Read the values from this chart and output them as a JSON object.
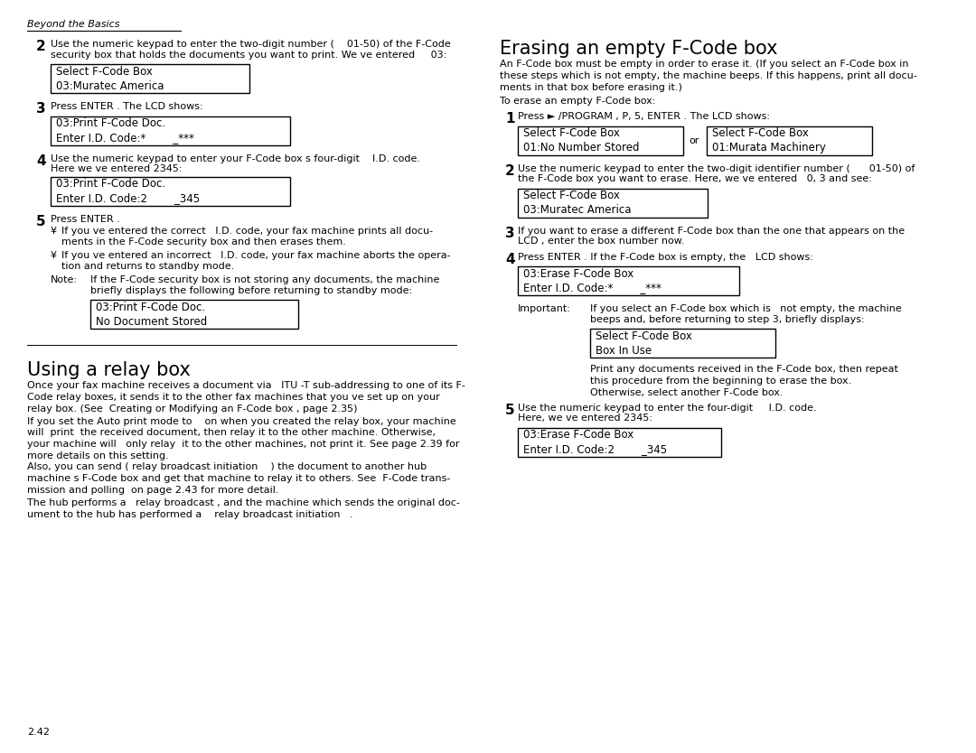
{
  "page_bg": "#ffffff",
  "text_color": "#000000",
  "header_text": "Beyond the Basics",
  "footer_text": "2.42",
  "left": {
    "step2_num": "2",
    "step2_text": "Use the numeric keypad to enter the two-digit number (    01-50) of the F-Code\nsecurity box that holds the documents you want to print. We ve entered     03:",
    "box1_lines": [
      "Select F-Code Box",
      "03:Muratec America"
    ],
    "step3_num": "3",
    "step3_text": "Press ENTER . The LCD shows:",
    "box2_lines": [
      "03:Print F-Code Doc.",
      "Enter I.D. Code:*        _***"
    ],
    "step4_num": "4",
    "step4_text": "Use the numeric keypad to enter your F-Code box s four-digit    I.D. code.\nHere we ve entered 2345:",
    "box3_lines": [
      "03:Print F-Code Doc.",
      "Enter I.D. Code:2        _345"
    ],
    "step5_num": "5",
    "step5_text": "Press ENTER .",
    "bullet1": "If you ve entered the correct   I.D. code, your fax machine prints all docu-\nments in the F-Code security box and then erases them.",
    "bullet2": "If you ve entered an incorrect   I.D. code, your fax machine aborts the opera-\ntion and returns to standby mode.",
    "note_label": "Note:",
    "note_text": "If the F-Code security box is not storing any documents, the machine\nbriefly displays the following before returning to standby mode:",
    "box4_lines": [
      "03:Print F-Code Doc.",
      "No Document Stored"
    ],
    "relay_title": "Using a relay box",
    "relay_para1": "Once your fax machine receives a document via   ITU -T sub-addressing to one of its F-\nCode relay boxes, it sends it to the other fax machines that you ve set up on your\nrelay box. (See  Creating or Modifying an F-Code box , page 2.35)",
    "relay_para2": "If you set the Auto print mode to    on when you created the relay box, your machine\nwill  print  the received document, then relay it to the other machine. Otherwise,\nyour machine will   only relay  it to the other machines, not print it. See page 2.39 for\nmore details on this setting.",
    "relay_para3": "Also, you can send ( relay broadcast initiation    ) the document to another hub\nmachine s F-Code box and get that machine to relay it to others. See  F-Code trans-\nmission and polling  on page 2.43 for more detail.",
    "relay_para4": "The hub performs a   relay broadcast , and the machine which sends the original doc-\nument to the hub has performed a    relay broadcast initiation   ."
  },
  "right": {
    "title": "Erasing an empty F-Code box",
    "intro": "An F-Code box must be empty in order to erase it. (If you select an F-Code box in\nthese steps which is not empty, the machine beeps. If this happens, print all docu-\nments in that box before erasing it.)",
    "sub_intro": "To erase an empty F-Code box:",
    "step1_num": "1",
    "step1_text": "Press ► /PROGRAM , P, 5, ENTER . The LCD shows:",
    "box1a_lines": [
      "Select F-Code Box",
      "01:No Number Stored"
    ],
    "or_text": "or",
    "box1b_lines": [
      "Select F-Code Box",
      "01:Murata Machinery"
    ],
    "step2_num": "2",
    "step2_text": "Use the numeric keypad to enter the two-digit identifier number (      01-50) of\nthe F-Code box you want to erase. Here, we ve entered   0, 3 and see:",
    "box2_lines": [
      "Select F-Code Box",
      "03:Muratec America"
    ],
    "step3_num": "3",
    "step3_text": "If you want to erase a different F-Code box than the one that appears on the\nLCD , enter the box number now.",
    "step4_num": "4",
    "step4_text": "Press ENTER . If the F-Code box is empty, the   LCD shows:",
    "box4_lines": [
      "03:Erase F-Code Box",
      "Enter I.D. Code:*        _***"
    ],
    "important_label": "Important:",
    "important_text": "If you select an F-Code box which is   not empty, the machine\nbeeps and, before returning to step 3, briefly displays:",
    "box_inuse_lines": [
      "Select F-Code Box",
      "Box In Use"
    ],
    "print_text": "Print any documents received in the F-Code box, then repeat\nthis procedure from the beginning to erase the box.\nOtherwise, select another F-Code box.",
    "step5_num": "5",
    "step5_text": "Use the numeric keypad to enter the four-digit     I.D. code.\nHere, we ve entered 2345:",
    "box5_lines": [
      "03:Erase F-Code Box",
      "Enter I.D. Code:2        _345"
    ]
  }
}
